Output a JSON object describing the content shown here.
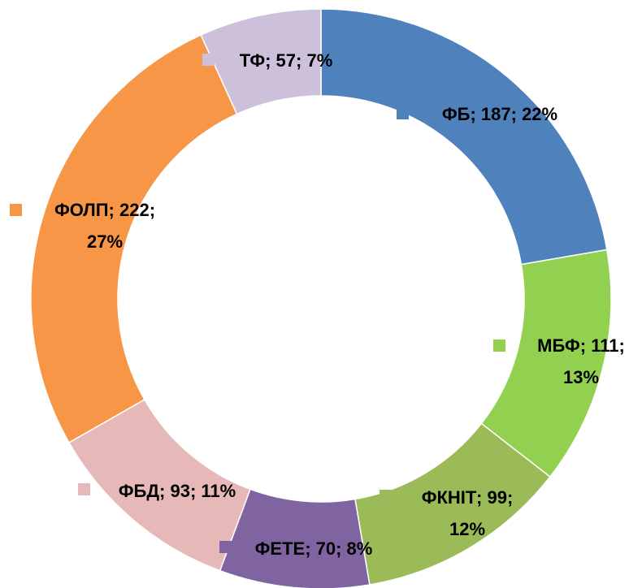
{
  "chart_data": {
    "type": "donut",
    "categories": [
      "ФБ",
      "МБФ",
      "ФКНІТ",
      "ФЕТЕ",
      "ФБД",
      "ФОЛП",
      "ТФ"
    ],
    "values": [
      187,
      111,
      99,
      70,
      93,
      222,
      57
    ],
    "value_labels": [
      "ФБ; 187; 22%",
      "МБФ; 111; 13%",
      "ФКНІТ; 99; 12%",
      "ФЕТЕ; 70; 8%",
      "ФБД; 93; 11%",
      "ФОЛП; 222; 27%",
      "ТФ; 57; 7%"
    ],
    "colors": [
      "#4f81bd",
      "#92d050",
      "#9bbb59",
      "#8064a2",
      "#e6b9b8",
      "#f79646",
      "#ccc0da"
    ]
  }
}
